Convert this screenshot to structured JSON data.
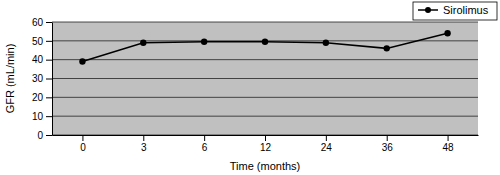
{
  "chart_data": {
    "type": "line",
    "x_label": "Time (months)",
    "y_label": "GFR (mL/min)",
    "categories": [
      "0",
      "3",
      "6",
      "12",
      "24",
      "36",
      "48"
    ],
    "series": [
      {
        "name": "Sirolimus",
        "color": "#000000",
        "values": [
          39,
          49,
          49.5,
          49.5,
          49,
          46,
          54
        ],
        "marker": "circle",
        "line_style": "solid"
      }
    ],
    "ylim": [
      0,
      60
    ],
    "yticks": [
      0,
      10,
      20,
      30,
      40,
      50,
      60
    ],
    "grid": true,
    "legend": "upper right"
  }
}
